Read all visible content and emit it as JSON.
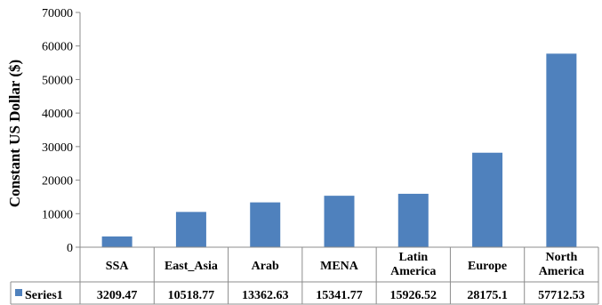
{
  "chart_data": {
    "type": "bar",
    "title": "",
    "xlabel": "",
    "ylabel": "Constant US Dollar ($)",
    "ylim": [
      0,
      70000
    ],
    "yticks": [
      0,
      10000,
      20000,
      30000,
      40000,
      50000,
      60000,
      70000
    ],
    "grid": false,
    "legend": "data-table",
    "categories": [
      "SSA",
      "East_Asia",
      "Arab",
      "MENA",
      "Latin America",
      "Europe",
      "North America"
    ],
    "series": [
      {
        "name": "Series1",
        "color": "#4f81bd",
        "values": [
          3209.47,
          10518.77,
          13362.63,
          15341.77,
          15926.52,
          28175.1,
          57712.53
        ],
        "value_labels": [
          "3209.47",
          "10518.77",
          "13362.63",
          "15341.77",
          "15926.52",
          "28175.1",
          "57712.53"
        ]
      }
    ]
  }
}
